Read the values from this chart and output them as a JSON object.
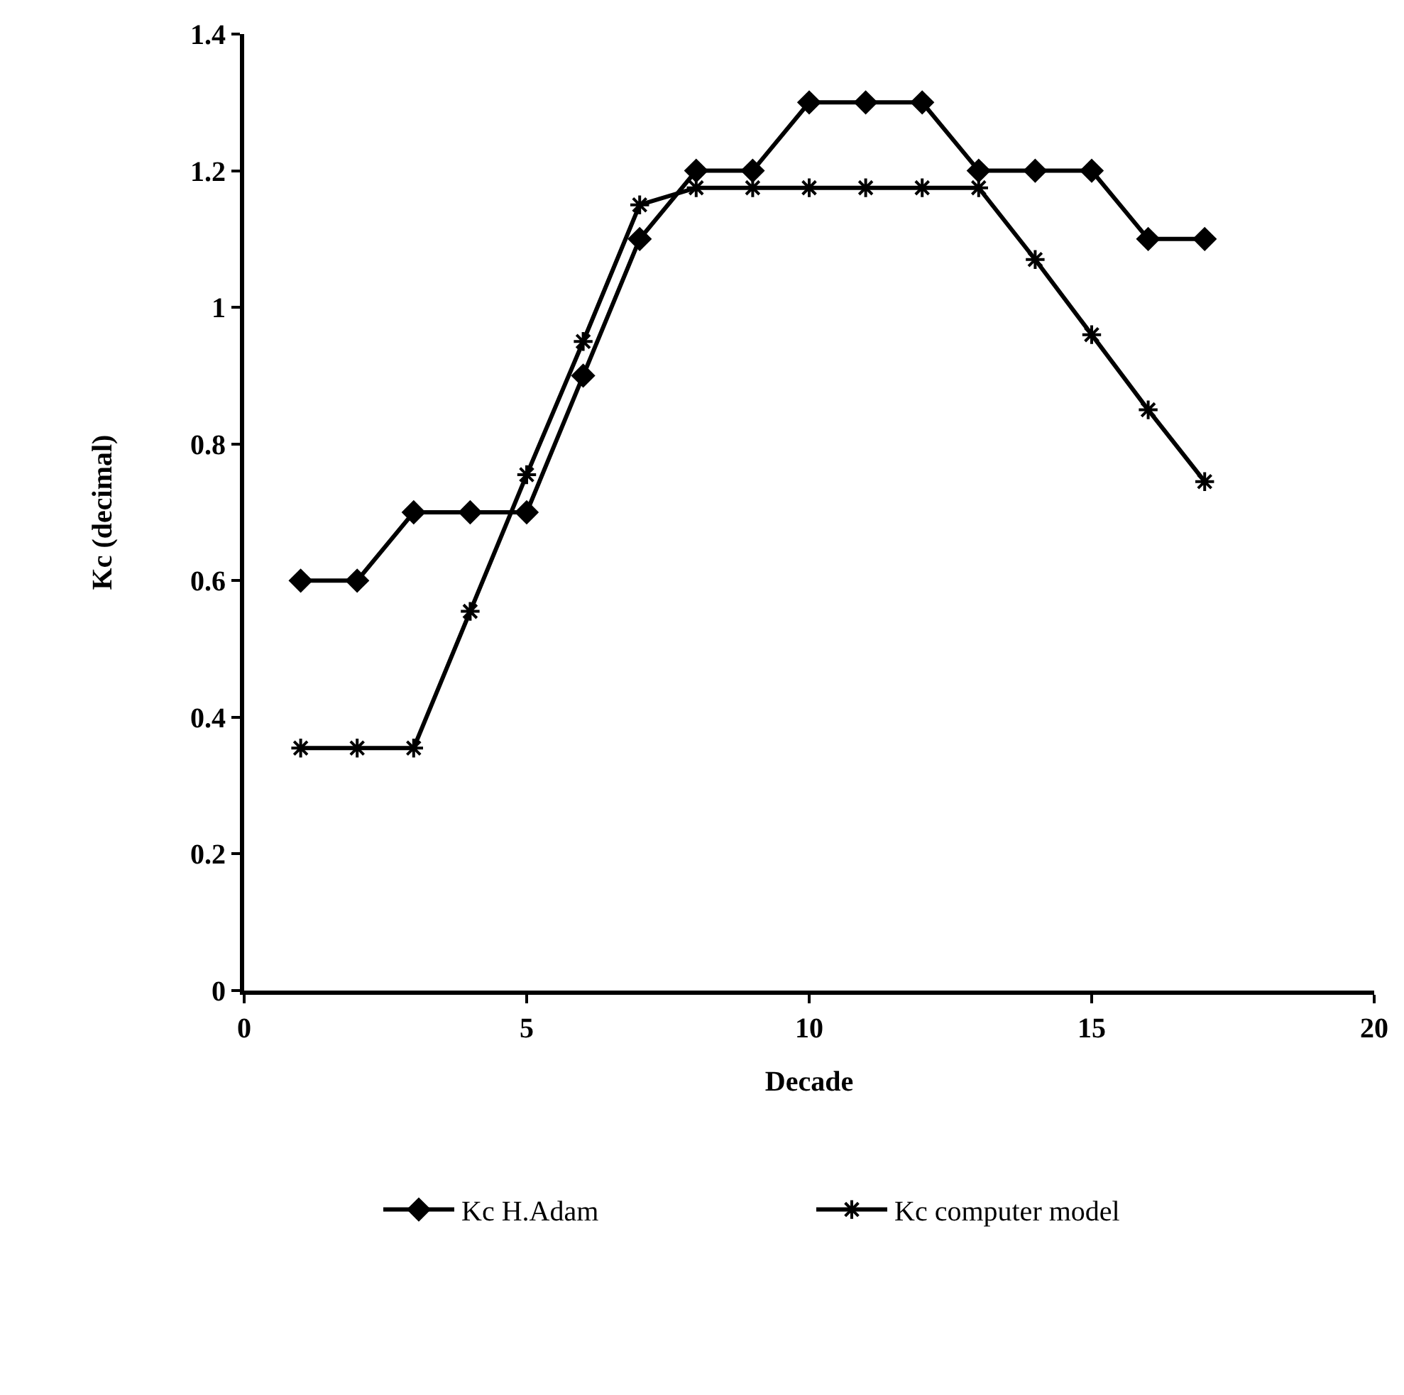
{
  "chart_data": {
    "type": "line",
    "xlabel": "Decade",
    "ylabel": "Kc (decimal)",
    "x": [
      1,
      2,
      3,
      4,
      5,
      6,
      7,
      8,
      9,
      10,
      11,
      12,
      13,
      14,
      15,
      16,
      17
    ],
    "series": [
      {
        "name": "Kc H.Adam",
        "color": "#000000",
        "marker": "diamond",
        "values": [
          0.6,
          0.6,
          0.7,
          0.7,
          0.7,
          0.9,
          1.1,
          1.2,
          1.2,
          1.3,
          1.3,
          1.3,
          1.2,
          1.2,
          1.2,
          1.1,
          1.1
        ]
      },
      {
        "name": "Kc computer model",
        "color": "#000000",
        "marker": "cross",
        "values": [
          0.355,
          0.355,
          0.355,
          0.555,
          0.755,
          0.95,
          1.15,
          1.175,
          1.175,
          1.175,
          1.175,
          1.175,
          1.175,
          1.07,
          0.96,
          0.85,
          0.745
        ]
      }
    ],
    "xlim": [
      0,
      20
    ],
    "xticks": [
      0,
      5,
      10,
      15,
      20
    ],
    "ylim": [
      0,
      1.4
    ],
    "yticks": [
      0,
      0.2,
      0.4,
      0.6,
      0.8,
      1,
      1.2,
      1.4
    ],
    "legend": "bottom",
    "line_style": "solid"
  }
}
